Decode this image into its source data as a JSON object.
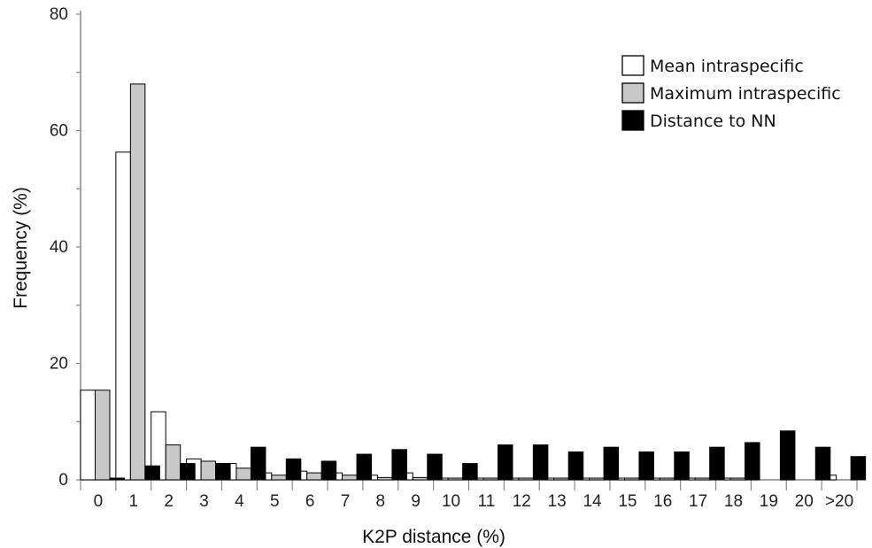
{
  "chart_data": {
    "type": "bar",
    "xlabel": "K2P distance (%)",
    "ylabel": "Frequency (%)",
    "ylim": [
      0,
      80
    ],
    "yticks": [
      0,
      20,
      40,
      60,
      80
    ],
    "grid": false,
    "legend_position": "top-right",
    "categories": [
      "0",
      "1",
      "2",
      "3",
      "4",
      "5",
      "6",
      "7",
      "8",
      "9",
      "10",
      "11",
      "12",
      "13",
      "14",
      "15",
      "16",
      "17",
      "18",
      "19",
      "20",
      ">20"
    ],
    "series": [
      {
        "name": "Mean intraspecific",
        "color": "#ffffff",
        "values": [
          15.4,
          56.3,
          11.7,
          3.6,
          2.8,
          1.2,
          1.5,
          1.2,
          0.8,
          1.2,
          0.3,
          0.3,
          0.3,
          0.3,
          0.3,
          0.3,
          0.3,
          0.3,
          0.3,
          0,
          0,
          0.8
        ]
      },
      {
        "name": "Maximum intraspecific",
        "color": "#c8c8c8",
        "values": [
          15.4,
          68.0,
          6.0,
          3.2,
          2.0,
          0.8,
          1.2,
          0.8,
          0.4,
          0.4,
          0.3,
          0.3,
          0.3,
          0.3,
          0.3,
          0.3,
          0.3,
          0.3,
          0.3,
          0,
          0,
          0
        ]
      },
      {
        "name": "Distance to NN",
        "color": "#000000",
        "values": [
          0.3,
          2.4,
          2.8,
          2.8,
          5.6,
          3.6,
          3.2,
          4.4,
          5.2,
          4.4,
          2.8,
          6.0,
          6.0,
          4.8,
          5.6,
          4.8,
          4.8,
          5.6,
          6.4,
          8.4,
          5.6,
          4.0
        ]
      }
    ]
  }
}
